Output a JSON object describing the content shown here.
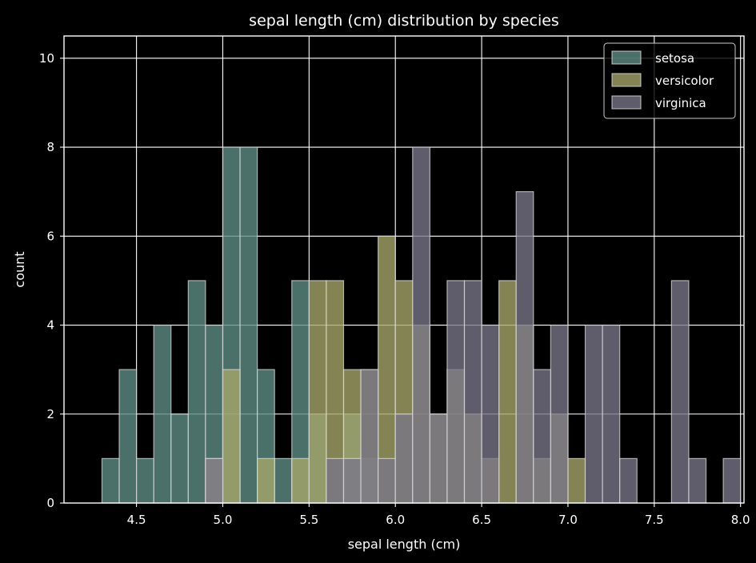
{
  "chart_data": {
    "type": "bar",
    "title": "sepal length (cm) distribution by species",
    "xlabel": "sepal length (cm)",
    "ylabel": "count",
    "xlim": [
      4.08,
      8.02
    ],
    "ylim": [
      0,
      10.5
    ],
    "xticks": [
      4.5,
      5.0,
      5.5,
      6.0,
      6.5,
      7.0,
      7.5,
      8.0
    ],
    "xtick_labels": [
      "4.5",
      "5.0",
      "5.5",
      "6.0",
      "6.5",
      "7.0",
      "7.5",
      "8.0"
    ],
    "yticks": [
      0,
      2,
      4,
      6,
      8,
      10
    ],
    "ytick_labels": [
      "0",
      "2",
      "4",
      "6",
      "8",
      "10"
    ],
    "grid": true,
    "legend_position": "top-right",
    "bin_width": 0.1,
    "series": [
      {
        "name": "setosa",
        "color": "#5f8f86",
        "x": [
          4.3,
          4.4,
          4.5,
          4.6,
          4.7,
          4.8,
          4.9,
          5.0,
          5.1,
          5.2,
          5.3,
          5.4,
          5.5,
          5.7,
          5.8
        ],
        "values": [
          1,
          3,
          1,
          4,
          2,
          5,
          4,
          8,
          8,
          3,
          1,
          5,
          2,
          2,
          1
        ]
      },
      {
        "name": "versicolor",
        "color": "#a9a86c",
        "x": [
          4.9,
          5.0,
          5.2,
          5.4,
          5.5,
          5.6,
          5.7,
          5.8,
          5.9,
          6.0,
          6.1,
          6.2,
          6.3,
          6.4,
          6.5,
          6.6,
          6.7,
          6.8,
          6.9,
          7.0
        ],
        "values": [
          1,
          3,
          1,
          1,
          5,
          5,
          3,
          3,
          6,
          5,
          4,
          2,
          3,
          2,
          1,
          5,
          4,
          1,
          2,
          1
        ]
      },
      {
        "name": "virginica",
        "color": "#7a7689",
        "x": [
          4.9,
          5.6,
          5.7,
          5.8,
          5.9,
          6.0,
          6.1,
          6.2,
          6.3,
          6.4,
          6.5,
          6.7,
          6.8,
          6.9,
          7.1,
          7.2,
          7.3,
          7.6,
          7.7,
          7.9
        ],
        "values": [
          1,
          1,
          1,
          3,
          1,
          2,
          8,
          2,
          5,
          5,
          4,
          7,
          3,
          4,
          4,
          4,
          1,
          5,
          1,
          1
        ]
      }
    ]
  }
}
